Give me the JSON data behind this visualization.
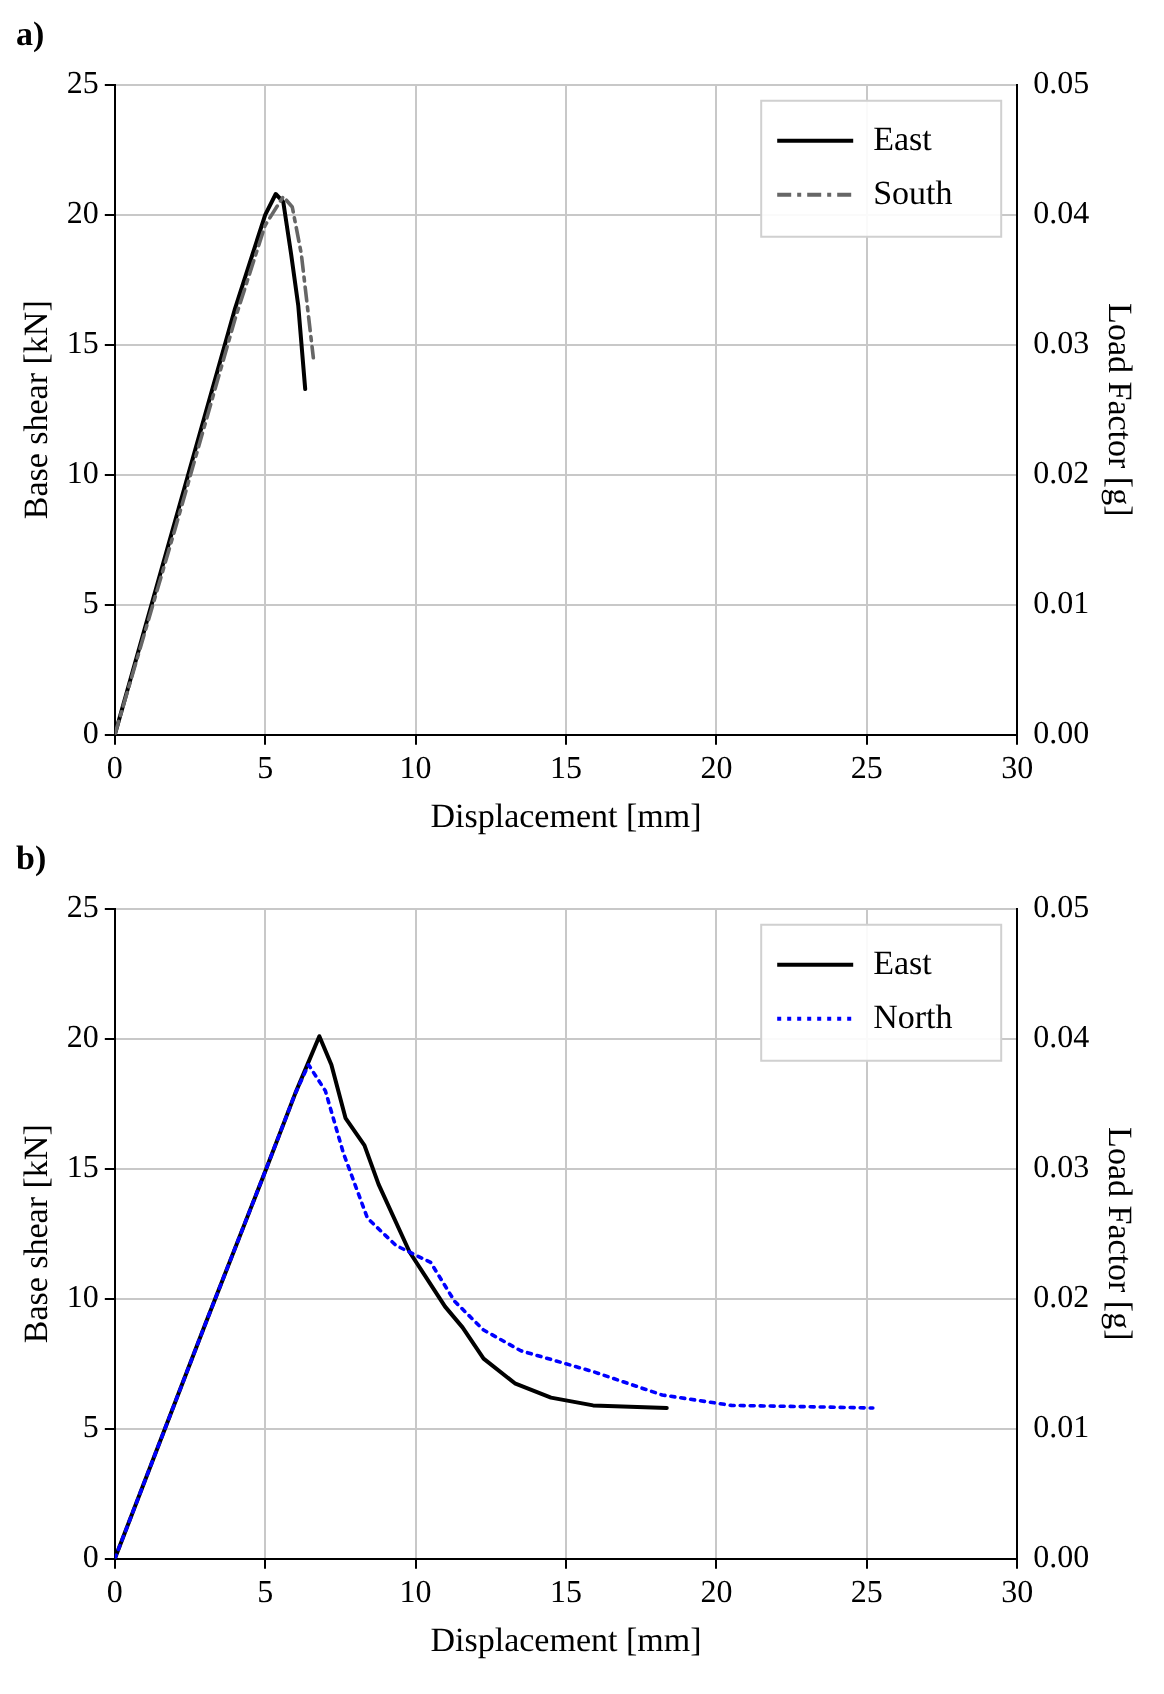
{
  "chart_data": [
    {
      "type": "line",
      "title": "a)",
      "xlabel": "Displacement [mm]",
      "ylabel": "Base shear [kN]",
      "y2label": "Load Factor [g]",
      "xlim": [
        0,
        30
      ],
      "xticks": [
        0,
        5,
        10,
        15,
        20,
        25,
        30
      ],
      "ylim": [
        0,
        25
      ],
      "yticks": [
        0,
        5,
        10,
        15,
        20,
        25
      ],
      "y2lim": [
        0,
        0.05
      ],
      "y2ticks": [
        {
          "value": 0,
          "label": "0.00"
        },
        {
          "value": 0.01,
          "label": "0.01"
        },
        {
          "value": 0.02,
          "label": "0.02"
        },
        {
          "value": 0.03,
          "label": "0.03"
        },
        {
          "value": 0.04,
          "label": "0.04"
        },
        {
          "value": 0.05,
          "label": "0.05"
        }
      ],
      "grid": true,
      "legend": "top right",
      "marker": "none",
      "series": [
        {
          "name": "East",
          "color": "#000000",
          "line_style": "solid",
          "x": [
            0,
            2,
            4,
            5,
            5.35,
            5.6,
            5.86,
            6.1,
            6.33
          ],
          "values": [
            0,
            8.2,
            16.4,
            20,
            20.8,
            20.5,
            18.5,
            16.5,
            13.3
          ]
        },
        {
          "name": "South",
          "color": "#666666",
          "line_style": "dashed",
          "x": [
            0,
            2,
            4,
            5,
            5.6,
            5.9,
            6.2,
            6.4,
            6.6
          ],
          "values": [
            0,
            7.9,
            16,
            19.6,
            20.7,
            20.3,
            18.5,
            16.5,
            14.5
          ]
        }
      ]
    },
    {
      "type": "line",
      "title": "b)",
      "xlabel": "Displacement [mm]",
      "ylabel": "Base shear [kN]",
      "y2label": "Load Factor [g]",
      "xlim": [
        0,
        30
      ],
      "xticks": [
        0,
        5,
        10,
        15,
        20,
        25,
        30
      ],
      "ylim": [
        0,
        25
      ],
      "yticks": [
        0,
        5,
        10,
        15,
        20,
        25
      ],
      "y2lim": [
        0,
        0.05
      ],
      "y2ticks": [
        {
          "value": 0,
          "label": "0.00"
        },
        {
          "value": 0.01,
          "label": "0.01"
        },
        {
          "value": 0.02,
          "label": "0.02"
        },
        {
          "value": 0.03,
          "label": "0.03"
        },
        {
          "value": 0.04,
          "label": "0.04"
        },
        {
          "value": 0.05,
          "label": "0.05"
        }
      ],
      "grid": true,
      "legend": "top right",
      "marker": "none",
      "series": [
        {
          "name": "East",
          "color": "#000000",
          "line_style": "solid",
          "x": [
            0,
            3,
            5,
            6,
            6.8,
            7.2,
            7.67,
            8.3,
            8.77,
            9.8,
            10.98,
            11.56,
            12.26,
            13.3,
            14.5,
            15.9,
            18.35
          ],
          "values": [
            0,
            9,
            14.9,
            17.9,
            20.1,
            19,
            16.95,
            15.9,
            14.4,
            11.8,
            9.7,
            8.9,
            7.7,
            6.75,
            6.2,
            5.9,
            5.8
          ]
        },
        {
          "name": "North",
          "color": "#0000ff",
          "line_style": "dotted",
          "x": [
            0,
            3,
            5,
            6,
            6.44,
            7,
            7.6,
            8.4,
            9.35,
            10.5,
            11.3,
            12.26,
            13.5,
            15.9,
            18.2,
            20.5,
            23,
            25.2
          ],
          "values": [
            0,
            9,
            14.9,
            17.9,
            19,
            18,
            15.6,
            13.1,
            12.05,
            11.4,
            9.9,
            8.8,
            8,
            7.2,
            6.3,
            5.9,
            5.85,
            5.8
          ]
        }
      ]
    }
  ]
}
